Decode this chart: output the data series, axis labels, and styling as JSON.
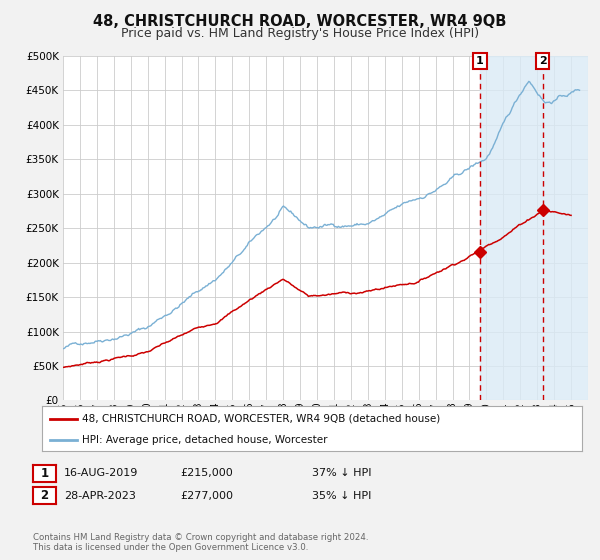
{
  "title": "48, CHRISTCHURCH ROAD, WORCESTER, WR4 9QB",
  "subtitle": "Price paid vs. HM Land Registry's House Price Index (HPI)",
  "ylim": [
    0,
    500000
  ],
  "xlim_left": 1995.0,
  "xlim_right": 2026.0,
  "yticks": [
    0,
    50000,
    100000,
    150000,
    200000,
    250000,
    300000,
    350000,
    400000,
    450000,
    500000
  ],
  "ytick_labels": [
    "£0",
    "£50K",
    "£100K",
    "£150K",
    "£200K",
    "£250K",
    "£300K",
    "£350K",
    "£400K",
    "£450K",
    "£500K"
  ],
  "xticks": [
    1995,
    1996,
    1997,
    1998,
    1999,
    2000,
    2001,
    2002,
    2003,
    2004,
    2005,
    2006,
    2007,
    2008,
    2009,
    2010,
    2011,
    2012,
    2013,
    2014,
    2015,
    2016,
    2017,
    2018,
    2019,
    2020,
    2021,
    2022,
    2023,
    2024,
    2025,
    2026
  ],
  "background_color": "#f2f2f2",
  "plot_bg_color": "#ffffff",
  "grid_color": "#cccccc",
  "red_line_color": "#cc0000",
  "blue_line_color": "#7ab0d4",
  "shade_color": "#daeaf5",
  "vline_color": "#cc0000",
  "marker1_date": 2019.625,
  "marker1_value": 215000,
  "marker2_date": 2023.33,
  "marker2_value": 277000,
  "legend_label_red": "48, CHRISTCHURCH ROAD, WORCESTER, WR4 9QB (detached house)",
  "legend_label_blue": "HPI: Average price, detached house, Worcester",
  "table_row1": [
    "1",
    "16-AUG-2019",
    "£215,000",
    "37% ↓ HPI"
  ],
  "table_row2": [
    "2",
    "28-APR-2023",
    "£277,000",
    "35% ↓ HPI"
  ],
  "footnote1": "Contains HM Land Registry data © Crown copyright and database right 2024.",
  "footnote2": "This data is licensed under the Open Government Licence v3.0.",
  "title_fontsize": 10.5,
  "subtitle_fontsize": 9
}
